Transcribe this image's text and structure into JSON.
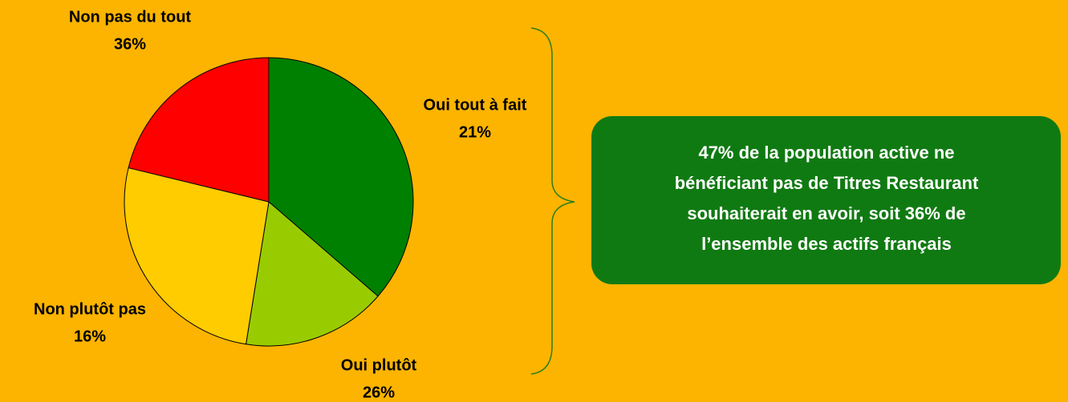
{
  "chart_data": {
    "type": "pie",
    "categories": [
      "Non pas du tout",
      "Non plutôt pas",
      "Oui plutôt",
      "Oui tout à fait"
    ],
    "values": [
      36,
      16,
      26,
      21
    ],
    "value_labels": [
      "36%",
      "16%",
      "26%",
      "21%"
    ],
    "colors": [
      "#008000",
      "#99cc00",
      "#ffcc00",
      "#ff0000"
    ],
    "callout": [
      "47% de la population active ne",
      "bénéficiant pas de Titres Restaurant",
      "souhaiterait en avoir, soit 36% de",
      "l’ensemble des actifs français"
    ]
  }
}
